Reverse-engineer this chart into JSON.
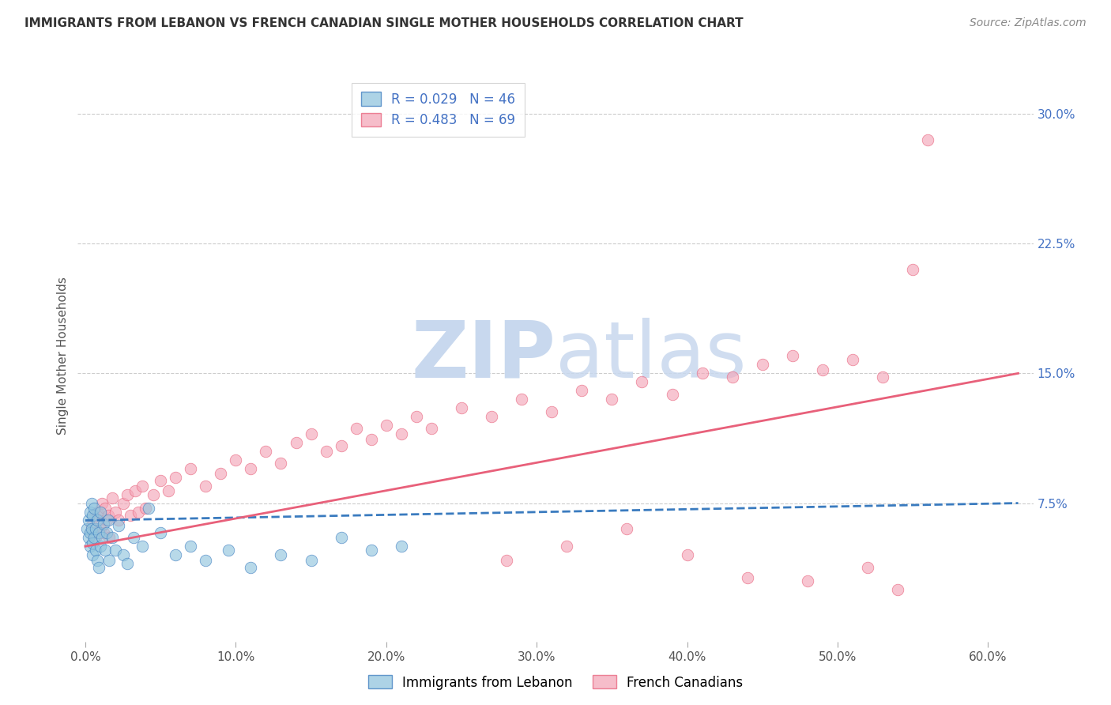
{
  "title": "IMMIGRANTS FROM LEBANON VS FRENCH CANADIAN SINGLE MOTHER HOUSEHOLDS CORRELATION CHART",
  "source": "Source: ZipAtlas.com",
  "ylabel": "Single Mother Households",
  "xlabel_ticks": [
    "0.0%",
    "10.0%",
    "20.0%",
    "30.0%",
    "40.0%",
    "50.0%",
    "60.0%"
  ],
  "xlabel_vals": [
    0.0,
    0.1,
    0.2,
    0.3,
    0.4,
    0.5,
    0.6
  ],
  "ylabel_ticks": [
    "7.5%",
    "15.0%",
    "22.5%",
    "30.0%"
  ],
  "ylabel_vals": [
    0.075,
    0.15,
    0.225,
    0.3
  ],
  "xlim": [
    -0.005,
    0.63
  ],
  "ylim": [
    -0.005,
    0.325
  ],
  "legend_R1": "R = 0.029",
  "legend_N1": "N = 46",
  "legend_R2": "R = 0.483",
  "legend_N2": "N = 69",
  "color_blue": "#92c5de",
  "color_pink": "#f4a7b9",
  "color_line_blue": "#3a7bbf",
  "color_line_pink": "#e8607a",
  "watermark_color": "#dce8f5",
  "blue_scatter_x": [
    0.001,
    0.002,
    0.002,
    0.003,
    0.003,
    0.003,
    0.004,
    0.004,
    0.005,
    0.005,
    0.005,
    0.006,
    0.006,
    0.007,
    0.007,
    0.008,
    0.008,
    0.009,
    0.009,
    0.01,
    0.01,
    0.011,
    0.012,
    0.013,
    0.014,
    0.015,
    0.016,
    0.018,
    0.02,
    0.022,
    0.025,
    0.028,
    0.032,
    0.038,
    0.042,
    0.05,
    0.06,
    0.07,
    0.08,
    0.095,
    0.11,
    0.13,
    0.15,
    0.17,
    0.19,
    0.21
  ],
  "blue_scatter_y": [
    0.06,
    0.065,
    0.055,
    0.07,
    0.058,
    0.05,
    0.075,
    0.06,
    0.068,
    0.052,
    0.045,
    0.055,
    0.072,
    0.06,
    0.048,
    0.065,
    0.042,
    0.058,
    0.038,
    0.07,
    0.05,
    0.055,
    0.063,
    0.048,
    0.058,
    0.065,
    0.042,
    0.055,
    0.048,
    0.062,
    0.045,
    0.04,
    0.055,
    0.05,
    0.072,
    0.058,
    0.045,
    0.05,
    0.042,
    0.048,
    0.038,
    0.045,
    0.042,
    0.055,
    0.048,
    0.05
  ],
  "pink_scatter_x": [
    0.004,
    0.005,
    0.006,
    0.007,
    0.008,
    0.009,
    0.01,
    0.011,
    0.012,
    0.013,
    0.014,
    0.015,
    0.016,
    0.018,
    0.02,
    0.022,
    0.025,
    0.028,
    0.03,
    0.033,
    0.035,
    0.038,
    0.04,
    0.045,
    0.05,
    0.055,
    0.06,
    0.07,
    0.08,
    0.09,
    0.1,
    0.11,
    0.12,
    0.13,
    0.14,
    0.15,
    0.16,
    0.17,
    0.18,
    0.19,
    0.2,
    0.21,
    0.22,
    0.23,
    0.25,
    0.27,
    0.29,
    0.31,
    0.33,
    0.35,
    0.37,
    0.39,
    0.41,
    0.43,
    0.45,
    0.47,
    0.49,
    0.51,
    0.53,
    0.55,
    0.28,
    0.32,
    0.36,
    0.4,
    0.44,
    0.48,
    0.52,
    0.54,
    0.56
  ],
  "pink_scatter_y": [
    0.062,
    0.058,
    0.068,
    0.055,
    0.07,
    0.065,
    0.06,
    0.075,
    0.058,
    0.072,
    0.065,
    0.068,
    0.055,
    0.078,
    0.07,
    0.065,
    0.075,
    0.08,
    0.068,
    0.082,
    0.07,
    0.085,
    0.072,
    0.08,
    0.088,
    0.082,
    0.09,
    0.095,
    0.085,
    0.092,
    0.1,
    0.095,
    0.105,
    0.098,
    0.11,
    0.115,
    0.105,
    0.108,
    0.118,
    0.112,
    0.12,
    0.115,
    0.125,
    0.118,
    0.13,
    0.125,
    0.135,
    0.128,
    0.14,
    0.135,
    0.145,
    0.138,
    0.15,
    0.148,
    0.155,
    0.16,
    0.152,
    0.158,
    0.148,
    0.21,
    0.042,
    0.05,
    0.06,
    0.045,
    0.032,
    0.03,
    0.038,
    0.025,
    0.285
  ],
  "blue_line_x": [
    0.0,
    0.62
  ],
  "blue_line_y": [
    0.065,
    0.075
  ],
  "pink_line_x": [
    0.0,
    0.62
  ],
  "pink_line_y": [
    0.05,
    0.15
  ]
}
